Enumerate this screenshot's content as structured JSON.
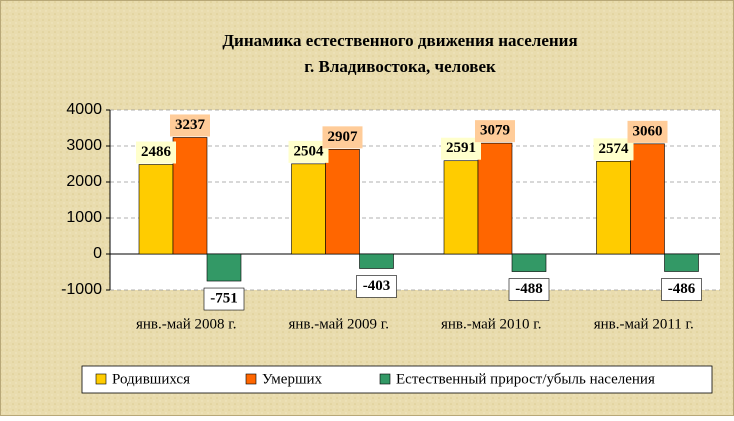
{
  "chart_data": {
    "type": "bar",
    "title": [
      "Динамика естественного движения населения",
      "г. Владивостока, человек"
    ],
    "categories": [
      "янв.-май 2008 г.",
      "янв.-май 2009 г.",
      "янв.-май 2010 г.",
      "янв.-май 2011 г."
    ],
    "series": [
      {
        "name": "Родившихся",
        "color": "#ffcc00",
        "label_bg": "#ffffcc",
        "values": [
          2486,
          2504,
          2591,
          2574
        ]
      },
      {
        "name": "Умерших",
        "color": "#ff6600",
        "label_bg": "#ffcc99",
        "values": [
          3237,
          2907,
          3079,
          3060
        ]
      },
      {
        "name": "Естественный прирост/убыль населения",
        "color": "#339966",
        "label_bg": "#ffffff",
        "values": [
          -751,
          -403,
          -488,
          -486
        ]
      }
    ],
    "ylim": [
      -1000,
      4000
    ],
    "yticks": [
      -1000,
      0,
      1000,
      2000,
      3000,
      4000
    ],
    "grid": true,
    "legend": "bottom"
  }
}
